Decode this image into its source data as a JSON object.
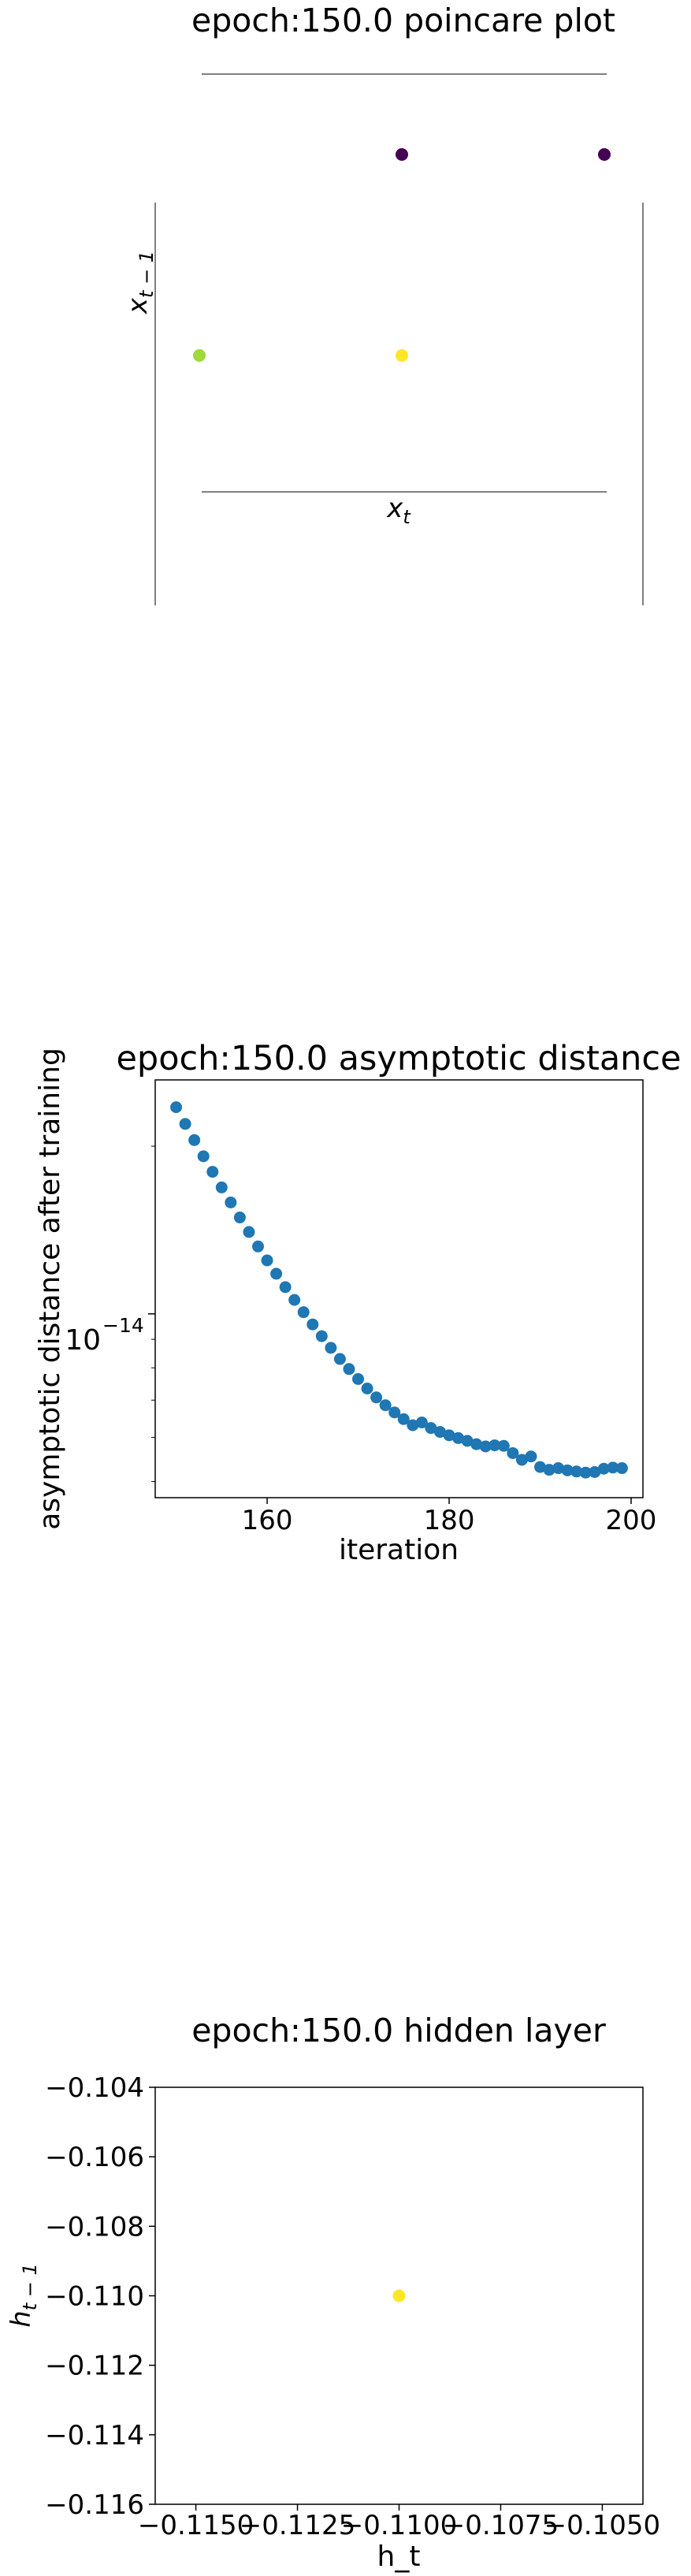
{
  "chart_data": [
    {
      "type": "scatter",
      "title": "epoch:150.0 poincare plot",
      "xlabel": "x_t",
      "ylabel": "x_{t-1}",
      "axes_visible": false,
      "grid": false,
      "points": [
        {
          "x": 0.0,
          "y": 1.0,
          "color": "#440154"
        },
        {
          "x": 1.0,
          "y": 1.0,
          "color": "#440154"
        },
        {
          "x": -1.0,
          "y": 0.0,
          "color": "#9fda3a"
        },
        {
          "x": 0.0,
          "y": 0.0,
          "color": "#fde725"
        }
      ]
    },
    {
      "type": "scatter",
      "title": "epoch:150.0 asymptotic distance",
      "xlabel": "iteration",
      "ylabel": "asymptotic distance after training",
      "yscale": "log",
      "xlim": [
        147.7,
        201.3
      ],
      "ylim_log10": [
        -14.33,
        -13.58
      ],
      "xticks": [
        "160",
        "180",
        "200"
      ],
      "ytick_label": {
        "base": "10",
        "exponent": "−14"
      },
      "grid": false,
      "color": "#1f77b4",
      "x": [
        150,
        151,
        152,
        153,
        154,
        155,
        156,
        157,
        158,
        159,
        160,
        161,
        162,
        163,
        164,
        165,
        166,
        167,
        168,
        169,
        170,
        171,
        172,
        173,
        174,
        175,
        176,
        177,
        178,
        179,
        180,
        181,
        182,
        183,
        184,
        185,
        186,
        187,
        188,
        189,
        190,
        191,
        192,
        193,
        194,
        195,
        196,
        197,
        198,
        199
      ],
      "log10_y": [
        -13.629,
        -13.659,
        -13.688,
        -13.717,
        -13.745,
        -13.773,
        -13.8,
        -13.827,
        -13.853,
        -13.879,
        -13.904,
        -13.928,
        -13.952,
        -13.975,
        -13.997,
        -14.019,
        -14.04,
        -14.061,
        -14.081,
        -14.099,
        -14.117,
        -14.134,
        -14.15,
        -14.164,
        -14.177,
        -14.189,
        -14.2,
        -14.195,
        -14.205,
        -14.212,
        -14.218,
        -14.223,
        -14.228,
        -14.234,
        -14.238,
        -14.236,
        -14.237,
        -14.25,
        -14.262,
        -14.256,
        -14.275,
        -14.28,
        -14.277,
        -14.281,
        -14.283,
        -14.285,
        -14.284,
        -14.278,
        -14.276,
        -14.277
      ]
    },
    {
      "type": "scatter",
      "title": "epoch:150.0 hidden layer",
      "xlabel": "h_t",
      "ylabel": "h_{t-1}",
      "xlim": [
        -0.116,
        -0.104
      ],
      "ylim": [
        -0.116,
        -0.104
      ],
      "xticks": [
        "−0.1150",
        "−0.1125",
        "−0.1100",
        "−0.1075",
        "−0.1050"
      ],
      "yticks": [
        "−0.116",
        "−0.114",
        "−0.112",
        "−0.110",
        "−0.108",
        "−0.106",
        "−0.104"
      ],
      "grid": false,
      "points": [
        {
          "x": -0.11,
          "y": -0.11,
          "color": "#fde725"
        }
      ]
    }
  ]
}
